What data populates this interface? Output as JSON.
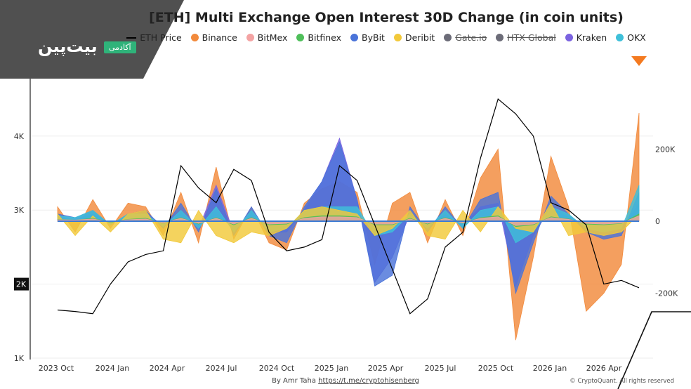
{
  "branding": {
    "logo_text": "بیت‌پین",
    "badge_text": "آکادمی"
  },
  "footer": {
    "author_prefix": "By Amr Taha",
    "author_link": "https://t.me/cryptohisenberg",
    "copyright": "© CryptoQuant. All rights reserved"
  },
  "colors": {
    "Binance": "#f28a3c",
    "BitMex": "#f4a3a3",
    "Bitfinex": "#4fbf5a",
    "ByBit": "#4a73d9",
    "Deribit": "#f2c93a",
    "Gate.io": "#6c6c78",
    "HTX Global": "#6c6c78",
    "Kraken": "#7b63e0",
    "OKX": "#3fc0d9",
    "ETH Price": "#000000"
  },
  "chart_data": {
    "type": "area",
    "title": "[ETH] Multi Exchange Open Interest 30D Change (in coin units)",
    "legend": [
      {
        "name": "ETH Price",
        "style": "line",
        "hidden": false
      },
      {
        "name": "Binance",
        "style": "dot",
        "hidden": false
      },
      {
        "name": "BitMex",
        "style": "dot",
        "hidden": false
      },
      {
        "name": "Bitfinex",
        "style": "dot",
        "hidden": false
      },
      {
        "name": "ByBit",
        "style": "dot",
        "hidden": false
      },
      {
        "name": "Deribit",
        "style": "dot",
        "hidden": false
      },
      {
        "name": "Gate.io",
        "style": "dot",
        "hidden": true
      },
      {
        "name": "HTX Global",
        "style": "dot",
        "hidden": true
      },
      {
        "name": "Kraken",
        "style": "dot",
        "hidden": false
      },
      {
        "name": "OKX",
        "style": "dot",
        "hidden": false
      }
    ],
    "x_ticks": [
      "2023 Oct",
      "2024 Jan",
      "2024 Apr",
      "2024 Jul",
      "2024 Oct",
      "2025 Jan",
      "2025 Apr",
      "2025 Jul",
      "2025 Oct",
      "2026 Jan",
      "2026 Apr"
    ],
    "y_left_ticks": [
      "1K",
      "2K",
      "3K",
      "4K"
    ],
    "y_left_highlight": "2K",
    "y_right_ticks": [
      "-200K",
      "0",
      "200K"
    ],
    "ylim_left": [
      1000,
      4700
    ],
    "ylim_right": [
      -380000,
      380000
    ],
    "x": [
      "2023-08",
      "2023-09",
      "2023-10",
      "2023-11",
      "2023-12",
      "2024-01",
      "2024-02",
      "2024-03",
      "2024-04",
      "2024-05",
      "2024-06",
      "2024-07",
      "2024-08",
      "2024-09",
      "2024-10",
      "2024-11",
      "2024-12",
      "2025-01",
      "2025-02",
      "2025-03",
      "2025-04",
      "2025-05",
      "2025-06",
      "2025-07",
      "2025-08",
      "2025-09",
      "2025-10",
      "2025-11",
      "2025-12",
      "2026-01",
      "2026-02",
      "2026-03",
      "2026-04",
      "2026-05"
    ],
    "eth_price": [
      1650,
      1630,
      1600,
      2000,
      2300,
      2400,
      2450,
      3600,
      3300,
      3100,
      3550,
      3400,
      2700,
      2450,
      2500,
      2600,
      3600,
      3400,
      2800,
      2200,
      1600,
      1800,
      2500,
      2700,
      3700,
      4500,
      4300,
      4000,
      3100,
      3000,
      2800,
      2000,
      2050,
      1950
    ],
    "series": [
      {
        "name": "Binance",
        "values": [
          40000,
          -30000,
          60000,
          -20000,
          50000,
          40000,
          -40000,
          80000,
          -60000,
          150000,
          -50000,
          40000,
          -60000,
          -80000,
          50000,
          90000,
          110000,
          80000,
          -120000,
          50000,
          80000,
          -60000,
          60000,
          -40000,
          120000,
          200000,
          -330000,
          -100000,
          180000,
          40000,
          -250000,
          -200000,
          -120000,
          300000
        ]
      },
      {
        "name": "ByBit",
        "values": [
          20000,
          10000,
          30000,
          -10000,
          20000,
          30000,
          -20000,
          50000,
          -30000,
          90000,
          -40000,
          40000,
          -40000,
          -60000,
          40000,
          110000,
          220000,
          60000,
          -180000,
          -150000,
          40000,
          -30000,
          40000,
          -20000,
          60000,
          80000,
          -200000,
          -60000,
          70000,
          20000,
          -30000,
          -50000,
          -40000,
          80000
        ]
      },
      {
        "name": "Kraken",
        "values": [
          10000,
          5000,
          20000,
          -5000,
          10000,
          20000,
          -10000,
          30000,
          -20000,
          100000,
          -30000,
          30000,
          -30000,
          -30000,
          30000,
          110000,
          230000,
          60000,
          -170000,
          -100000,
          20000,
          -20000,
          20000,
          -10000,
          40000,
          50000,
          -180000,
          -40000,
          40000,
          10000,
          -20000,
          -30000,
          -20000,
          50000
        ]
      },
      {
        "name": "Deribit",
        "values": [
          20000,
          -40000,
          15000,
          -30000,
          20000,
          30000,
          -50000,
          -60000,
          30000,
          -40000,
          -60000,
          -30000,
          -40000,
          -20000,
          30000,
          40000,
          30000,
          20000,
          -40000,
          -20000,
          30000,
          -40000,
          -50000,
          30000,
          -30000,
          40000,
          -20000,
          -30000,
          50000,
          -40000,
          -30000,
          -40000,
          -30000,
          20000
        ]
      },
      {
        "name": "OKX",
        "values": [
          15000,
          10000,
          30000,
          -10000,
          20000,
          20000,
          -15000,
          30000,
          -20000,
          40000,
          -30000,
          30000,
          -30000,
          -20000,
          30000,
          40000,
          40000,
          40000,
          -40000,
          -30000,
          20000,
          -20000,
          30000,
          -20000,
          30000,
          40000,
          -60000,
          -30000,
          40000,
          20000,
          -20000,
          -30000,
          -20000,
          100000
        ]
      },
      {
        "name": "Bitfinex",
        "values": [
          5000,
          3000,
          8000,
          -3000,
          5000,
          8000,
          -5000,
          10000,
          -8000,
          10000,
          -10000,
          10000,
          -10000,
          -8000,
          10000,
          15000,
          15000,
          12000,
          -10000,
          -10000,
          8000,
          -8000,
          10000,
          -6000,
          10000,
          15000,
          -15000,
          -10000,
          12000,
          6000,
          -8000,
          -10000,
          -6000,
          20000
        ]
      },
      {
        "name": "BitMex",
        "values": [
          4000,
          3000,
          6000,
          -2000,
          4000,
          6000,
          -4000,
          8000,
          -6000,
          8000,
          -8000,
          8000,
          -8000,
          -6000,
          8000,
          12000,
          12000,
          10000,
          -8000,
          -8000,
          6000,
          -6000,
          8000,
          -5000,
          8000,
          12000,
          -12000,
          -8000,
          10000,
          5000,
          -6000,
          -8000,
          -5000,
          15000
        ]
      }
    ]
  }
}
